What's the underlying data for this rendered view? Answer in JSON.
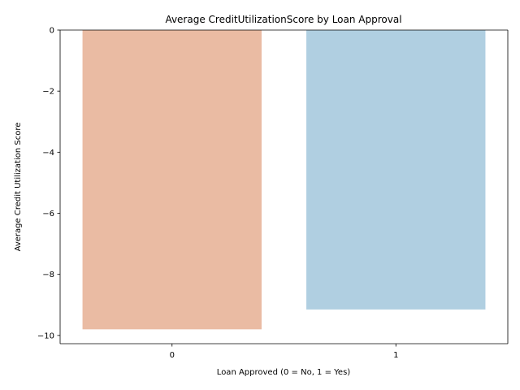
{
  "chart_data": {
    "type": "bar",
    "title": "Average CreditUtilizationScore by Loan Approval",
    "xlabel": "Loan Approved (0 = No, 1 = Yes)",
    "ylabel": "Average Credit Utilization Score",
    "categories": [
      "0",
      "1"
    ],
    "values": [
      -9.8,
      -9.15
    ],
    "colors": [
      "#eabba3",
      "#b0cfe1"
    ],
    "ylim": [
      -10.27,
      0
    ],
    "yticks": [
      0,
      -2,
      -4,
      -6,
      -8,
      -10
    ],
    "ytick_labels": [
      "0",
      "−2",
      "−4",
      "−6",
      "−8",
      "−10"
    ],
    "grid": false,
    "legend": "none"
  }
}
